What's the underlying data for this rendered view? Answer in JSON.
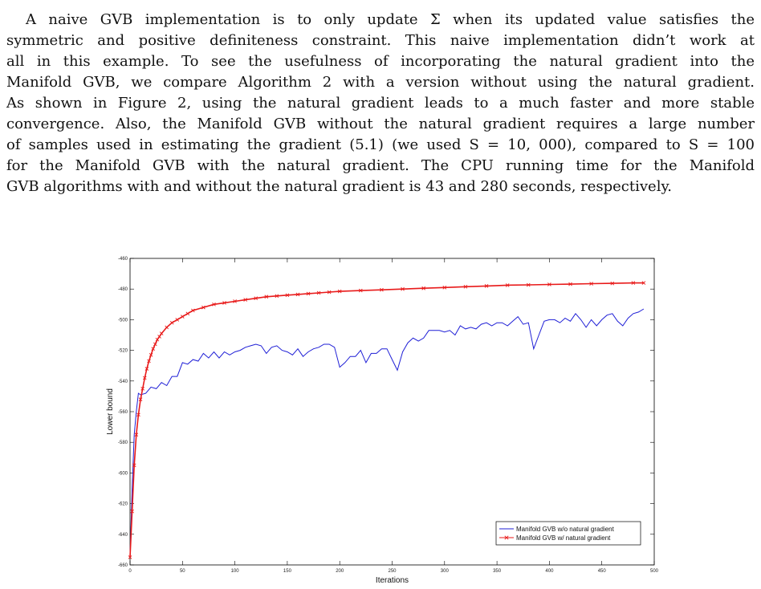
{
  "paragraph": {
    "lines": [
      "A naive GVB implementation is to only update Σ when its updated value satisfies the",
      "symmetric and positive definiteness constraint. This naive implementation didn’t work at",
      "all in this example. To see the usefulness of incorporating the natural gradient into the",
      "Manifold GVB, we compare Algorithm 2 with a version without using the natural gradient.",
      "As shown in Figure 2, using the natural gradient leads to a much faster and more stable",
      "convergence. Also, the Manifold GVB without the natural gradient requires a large number",
      "of samples used in estimating the gradient (5.1) (we used S = 10, 000), compared to S = 100",
      "for the Manifold GVB with the natural gradient. The CPU running time for the Manifold",
      "GVB algorithms with and without the natural gradient is 43 and 280 seconds, respectively."
    ]
  },
  "chart_data": {
    "type": "line",
    "xlabel": "Iterations",
    "ylabel": "Lower bound",
    "xlim": [
      0,
      500
    ],
    "ylim": [
      -660,
      -460
    ],
    "xticks": [
      0,
      50,
      100,
      150,
      200,
      250,
      300,
      350,
      400,
      450,
      500
    ],
    "yticks": [
      -660,
      -640,
      -620,
      -600,
      -580,
      -560,
      -540,
      -520,
      -500,
      -480,
      -460
    ],
    "legend_position": "lower-right",
    "series": [
      {
        "name": "Manifold GVB w/o natural gradient",
        "color": "#1f1fd6",
        "marker": "none",
        "x": [
          0,
          2,
          4,
          6,
          8,
          10,
          15,
          20,
          25,
          30,
          35,
          40,
          45,
          50,
          55,
          60,
          65,
          70,
          75,
          80,
          85,
          90,
          95,
          100,
          105,
          110,
          115,
          120,
          125,
          130,
          135,
          140,
          145,
          150,
          155,
          160,
          165,
          170,
          175,
          180,
          185,
          190,
          195,
          200,
          205,
          210,
          215,
          220,
          225,
          230,
          235,
          240,
          245,
          250,
          255,
          260,
          265,
          270,
          275,
          280,
          285,
          290,
          295,
          300,
          305,
          310,
          315,
          320,
          325,
          330,
          335,
          340,
          345,
          350,
          355,
          360,
          365,
          370,
          375,
          380,
          385,
          390,
          395,
          400,
          405,
          410,
          415,
          420,
          425,
          430,
          435,
          440,
          445,
          450,
          455,
          460,
          465,
          470,
          475,
          480,
          485,
          490
        ],
        "y": [
          -655,
          -610,
          -575,
          -560,
          -548,
          -549,
          -548,
          -544,
          -545,
          -541,
          -543,
          -537,
          -537,
          -528,
          -529,
          -526,
          -527,
          -522,
          -525,
          -521,
          -525,
          -521,
          -523,
          -521,
          -520,
          -518,
          -517,
          -516,
          -517,
          -522,
          -518,
          -517,
          -520,
          -521,
          -523,
          -519,
          -524,
          -521,
          -519,
          -518,
          -516,
          -516,
          -518,
          -531,
          -528,
          -524,
          -524,
          -520,
          -528,
          -522,
          -522,
          -519,
          -519,
          -526,
          -533,
          -521,
          -515,
          -512,
          -514,
          -512,
          -507,
          -507,
          -507,
          -508,
          -507,
          -510,
          -504,
          -506,
          -505,
          -506,
          -503,
          -502,
          -504,
          -502,
          -502,
          -504,
          -501,
          -498,
          -503,
          -502,
          -519,
          -510,
          -501,
          -500,
          -500,
          -502,
          -499,
          -501,
          -496,
          -500,
          -505,
          -500,
          -504,
          -500,
          -497,
          -496,
          -501,
          -504,
          -499,
          -496,
          -495,
          -493
        ]
      },
      {
        "name": "Manifold GVB w/ natural gradient",
        "color": "#e81a1a",
        "marker": "x",
        "x": [
          0,
          2,
          4,
          6,
          8,
          10,
          12,
          14,
          16,
          18,
          20,
          22,
          24,
          26,
          28,
          30,
          35,
          40,
          45,
          50,
          55,
          60,
          70,
          80,
          90,
          100,
          110,
          120,
          130,
          140,
          150,
          160,
          170,
          180,
          190,
          200,
          220,
          240,
          260,
          280,
          300,
          320,
          340,
          360,
          380,
          400,
          420,
          440,
          460,
          480,
          490
        ],
        "y": [
          -655,
          -625,
          -595,
          -575,
          -562,
          -552,
          -545,
          -538,
          -532,
          -527,
          -523,
          -519,
          -516,
          -513,
          -511,
          -509,
          -505,
          -502,
          -500,
          -498,
          -496,
          -494,
          -492,
          -490,
          -489,
          -488,
          -487,
          -486,
          -485,
          -484.5,
          -484,
          -483.5,
          -483,
          -482.5,
          -482,
          -481.5,
          -481,
          -480.5,
          -480,
          -479.5,
          -479,
          -478.5,
          -478,
          -477.5,
          -477.3,
          -477,
          -476.8,
          -476.5,
          -476.3,
          -476,
          -476
        ]
      }
    ]
  }
}
